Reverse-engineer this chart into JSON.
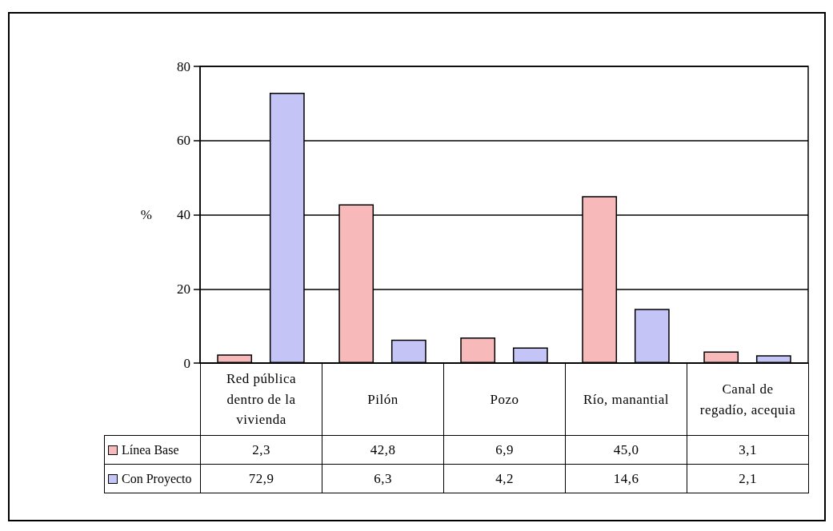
{
  "chart_data": {
    "type": "bar",
    "ylabel": "%",
    "categories": [
      "Red pública dentro de la vivienda",
      "Pilón",
      "Pozo",
      "Río, manantial",
      "Canal de regadío, acequia"
    ],
    "series": [
      {
        "name": "Línea Base",
        "color": "#f7b9b9",
        "values": [
          2.3,
          42.8,
          6.9,
          45.0,
          3.1
        ],
        "value_labels": [
          "2,3",
          "42,8",
          "6,9",
          "45,0",
          "3,1"
        ]
      },
      {
        "name": "Con Proyecto",
        "color": "#c4c4f7",
        "values": [
          72.9,
          6.3,
          4.2,
          14.6,
          2.1
        ],
        "value_labels": [
          "72,9",
          "6,3",
          "4,2",
          "14,6",
          "2,1"
        ]
      }
    ],
    "ylim": [
      0,
      80
    ],
    "yticks": [
      0,
      20,
      40,
      60,
      80
    ],
    "grid": "y",
    "legend": "bottom left"
  }
}
